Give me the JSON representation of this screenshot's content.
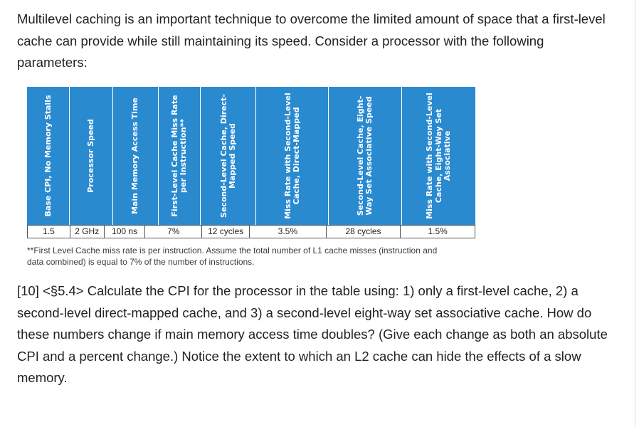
{
  "intro_text": "Multilevel caching is an important technique to overcome the limited amount of space that a first-level cache can provide while still maintaining its speed. Consider a processor with the following parameters:",
  "table": {
    "headers": [
      "Base CPI, No Memory Stalls",
      "Processor Speed",
      "Main Memory Access Time",
      "First-Level Cache Miss Rate per Instruction**",
      "Second-Level Cache, Direct-Mapped Speed",
      "Miss Rate with Second-Level Cache, Direct-Mapped",
      "Second-Level Cache, Eight-Way Set Associative Speed",
      "Miss Rate with Second-Level Cache, Eight-Way Set Associative"
    ],
    "values": [
      "1.5",
      "2 GHz",
      "100 ns",
      "7%",
      "12 cycles",
      "3.5%",
      "28 cycles",
      "1.5%"
    ],
    "header_color": "#2a8ad0"
  },
  "footnote": "**First Level Cache miss rate is per instruction. Assume the total number of L1 cache misses (instruction and data combined) is equal to 7% of the number of instructions.",
  "question_text": "[10] <§5.4> Calculate the CPI for the processor in the table using: 1) only a first-level cache, 2) a second-level direct-mapped cache, and 3) a second-level eight-way set associative cache. How do these numbers change if main memory access time doubles? (Give each change as both an absolute CPI and a percent change.) Notice the extent to which an L2 cache can hide the effects of a slow memory."
}
